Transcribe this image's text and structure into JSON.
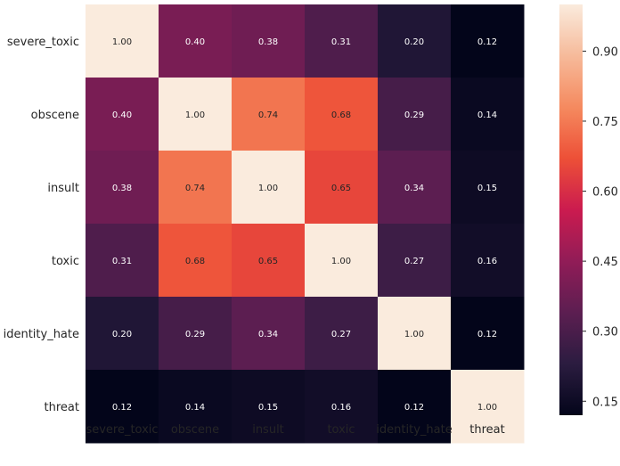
{
  "chart_data": {
    "type": "heatmap",
    "title": "",
    "xlabel": "",
    "ylabel": "",
    "x_categories": [
      "severe_toxic",
      "obscene",
      "insult",
      "toxic",
      "identity_hate",
      "threat"
    ],
    "y_categories": [
      "severe_toxic",
      "obscene",
      "insult",
      "toxic",
      "identity_hate",
      "threat"
    ],
    "values": [
      [
        1.0,
        0.4,
        0.38,
        0.31,
        0.2,
        0.12
      ],
      [
        0.4,
        1.0,
        0.74,
        0.68,
        0.29,
        0.14
      ],
      [
        0.38,
        0.74,
        1.0,
        0.65,
        0.34,
        0.15
      ],
      [
        0.31,
        0.68,
        0.65,
        1.0,
        0.27,
        0.16
      ],
      [
        0.2,
        0.29,
        0.34,
        0.27,
        1.0,
        0.12
      ],
      [
        0.12,
        0.14,
        0.15,
        0.16,
        0.12,
        1.0
      ]
    ],
    "value_labels": [
      [
        "1.00",
        "0.40",
        "0.38",
        "0.31",
        "0.20",
        "0.12"
      ],
      [
        "0.40",
        "1.00",
        "0.74",
        "0.68",
        "0.29",
        "0.14"
      ],
      [
        "0.38",
        "0.74",
        "1.00",
        "0.65",
        "0.34",
        "0.15"
      ],
      [
        "0.31",
        "0.68",
        "0.65",
        "1.00",
        "0.27",
        "0.16"
      ],
      [
        "0.20",
        "0.29",
        "0.34",
        "0.27",
        "1.00",
        "0.12"
      ],
      [
        "0.12",
        "0.14",
        "0.15",
        "0.16",
        "0.12",
        "1.00"
      ]
    ],
    "colorbar": {
      "range": [
        0.12,
        1.0
      ],
      "ticks": [
        0.15,
        0.3,
        0.45,
        0.6,
        0.75,
        0.9
      ],
      "tick_labels": [
        "0.15",
        "0.30",
        "0.45",
        "0.60",
        "0.75",
        "0.90"
      ]
    },
    "colormap": "rocket",
    "colormap_stops": [
      "#03051a",
      "#2b1c40",
      "#5c1e51",
      "#911c57",
      "#cb1b4f",
      "#ed5037",
      "#f58a5f",
      "#f6ba9a",
      "#faebdd"
    ],
    "dark_text_color": "#262626",
    "light_text_color": "#ffffff",
    "grid": false,
    "legend": "colorbar-right"
  }
}
